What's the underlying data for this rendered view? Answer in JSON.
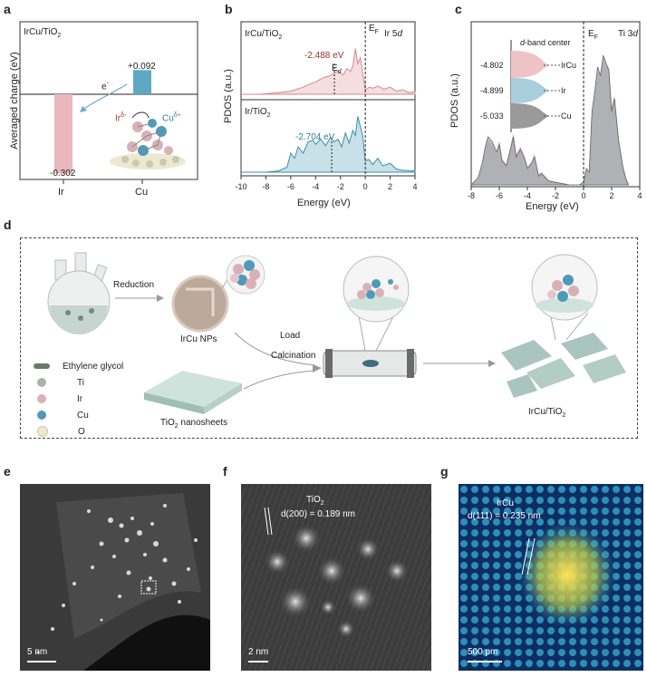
{
  "panels": {
    "a": {
      "letter": "a",
      "system_label": "IrCu/TiO",
      "system_sub": "2",
      "ylabel": "Averaged charge (eV)",
      "electron_label": "e",
      "electron_sup": "-",
      "ir_label": "Ir",
      "ir_sup": "δ-",
      "cu_label": "Cu",
      "cu_sup": "δ+",
      "colors": {
        "ir": "#e8b7bc",
        "cu": "#5fa8c4",
        "arrow": "#6aaac6"
      }
    },
    "b": {
      "letter": "b",
      "top_label": "IrCu/TiO",
      "top_sub": "2",
      "orbital": "Ir 5",
      "orbital_italic": "d",
      "ef_label": "E",
      "ef_sub": "F",
      "ed_label": "E",
      "ed_sub": "d",
      "top_value": "-2.488 eV",
      "bottom_label": "Ir/TiO",
      "bottom_sub": "2",
      "bottom_value": "-2.704 eV",
      "ylabel": "PDOS (a.u.)",
      "colors": {
        "top": "#d9888f",
        "bottom": "#3a8fa8",
        "top_value": "#9c2f2f",
        "bottom_value": "#2f7f99"
      }
    },
    "c": {
      "letter": "c",
      "orbital": "Ti 3",
      "orbital_italic": "d",
      "ef_label": "E",
      "ef_sub": "F",
      "dband_italic": "d",
      "dband_rest": "-band center",
      "ylabel": "PDOS (a.u.)",
      "xlabel": "Energy (eV)",
      "centers": [
        {
          "value": "-4.802",
          "name": "IrCu",
          "color": "#eec3c6"
        },
        {
          "value": "-4.899",
          "name": "Ir",
          "color": "#a9cedc"
        },
        {
          "value": "-5.033",
          "name": "Cu",
          "color": "#9a9a9a"
        }
      ]
    },
    "d": {
      "letter": "d",
      "reduction": "Reduction",
      "nps_label": "IrCu NPs",
      "load": "Load",
      "calcination": "Calcination",
      "nanosheets_label": "TiO",
      "nanosheets_sub": "2",
      "nanosheets_rest": " nanosheets",
      "product_label": "IrCu/TiO",
      "product_sub": "2",
      "legend": [
        {
          "label": "Ethylene glycol",
          "color": "#6b7a6b"
        },
        {
          "label": "Ti",
          "color": "#a7b3ad"
        },
        {
          "label": "Ir",
          "color": "#d9b1b4"
        },
        {
          "label": "Cu",
          "color": "#4f9ab8"
        },
        {
          "label": "O",
          "color": "#ede8cf"
        }
      ]
    },
    "e": {
      "letter": "e",
      "scalebar": "5 nm"
    },
    "f": {
      "letter": "f",
      "phase": "TiO",
      "phase_sub": "2",
      "spacing": "d(200) = 0.189 nm",
      "scalebar": "2 nm"
    },
    "g": {
      "letter": "g",
      "phase": "IrCu",
      "spacing": "d(111) = 0.235 nm",
      "scalebar": "500 pm"
    }
  },
  "chart_data": [
    {
      "type": "bar",
      "categories": [
        "Ir",
        "Cu"
      ],
      "values": [
        -0.302,
        0.092
      ],
      "value_labels": [
        "-0.302",
        "+0.092"
      ],
      "ylabel": "Averaged charge (eV)"
    },
    {
      "type": "area",
      "xlabel": "Energy (eV)",
      "ylabel": "PDOS (a.u.)",
      "xlim": [
        -10,
        4
      ],
      "xticks": [
        "-10",
        "-8",
        "-6",
        "-4",
        "-2",
        "0",
        "2",
        "4"
      ],
      "series": [
        {
          "name": "IrCu/TiO2",
          "d_band_center": -2.488,
          "x": [
            -10,
            -8.5,
            -7,
            -6,
            -5.5,
            -5,
            -4.5,
            -4,
            -3.6,
            -3.2,
            -2.8,
            -2.5,
            -2.2,
            -1.8,
            -1.5,
            -1.2,
            -1,
            -0.8,
            -0.6,
            -0.4,
            -0.2,
            0,
            0.3,
            0.6,
            1,
            1.5,
            2,
            2.5,
            3,
            3.5,
            4
          ],
          "y": [
            0,
            0,
            0.03,
            0.06,
            0.1,
            0.14,
            0.2,
            0.24,
            0.3,
            0.34,
            0.37,
            0.42,
            0.46,
            0.38,
            0.5,
            0.45,
            0.55,
            0.9,
            0.6,
            0.72,
            0.4,
            0.08,
            0.14,
            0.12,
            0.16,
            0.1,
            0.14,
            0.06,
            0.09,
            0.03,
            0.05
          ]
        },
        {
          "name": "Ir/TiO2",
          "d_band_center": -2.704,
          "x": [
            -10,
            -8,
            -7,
            -6.3,
            -6,
            -5.7,
            -5.4,
            -5,
            -4.6,
            -4.2,
            -4,
            -3.6,
            -3.2,
            -2.8,
            -2.5,
            -2.2,
            -1.9,
            -1.6,
            -1.3,
            -1,
            -0.8,
            -0.6,
            -0.4,
            -0.2,
            0,
            0.3,
            0.6,
            1,
            1.4,
            2,
            2.5,
            3,
            4
          ],
          "y": [
            0,
            0,
            0.02,
            0.08,
            0.3,
            0.22,
            0.4,
            0.3,
            0.48,
            0.5,
            0.44,
            0.52,
            0.42,
            0.55,
            0.48,
            0.52,
            0.4,
            0.62,
            0.46,
            0.66,
            0.58,
            0.88,
            0.72,
            0.56,
            0.18,
            0.2,
            0.12,
            0.22,
            0.1,
            0.14,
            0.05,
            0.03,
            0.02
          ]
        }
      ]
    },
    {
      "type": "area",
      "xlabel": "Energy (eV)",
      "ylabel": "PDOS (a.u.)",
      "xlim": [
        -8,
        4
      ],
      "xticks": [
        "-8",
        "-6",
        "-4",
        "-2",
        "0",
        "2",
        "4"
      ],
      "series": [
        {
          "name": "IrCu",
          "d_band_center": -4.802,
          "x": [
            -8,
            -7.5,
            -7.2,
            -7,
            -6.8,
            -6.5,
            -6.2,
            -6,
            -5.8,
            -5.5,
            -5.2,
            -5,
            -4.8,
            -4.5,
            -4.2,
            -4,
            -3.7,
            -3.5,
            -3.2,
            -3,
            -2.5,
            -2,
            -1,
            -0.3,
            0,
            0.2,
            0.4,
            0.6,
            0.8,
            1,
            1.2,
            1.4,
            1.6,
            1.8,
            2,
            2.2,
            2.5,
            2.8,
            3,
            3.2
          ],
          "y": [
            0,
            0.05,
            0.16,
            0.28,
            0.36,
            0.32,
            0.25,
            0.34,
            0.2,
            0.16,
            0.3,
            0.4,
            0.24,
            0.3,
            0.22,
            0.14,
            0.18,
            0.24,
            0.08,
            0.1,
            0.04,
            0.02,
            0,
            0,
            0.02,
            0.12,
            0.1,
            0.55,
            0.7,
            0.9,
            0.85,
            1,
            0.95,
            0.92,
            0.6,
            0.7,
            0.35,
            0.15,
            0.06,
            0
          ]
        },
        {
          "name": "Ir",
          "d_band_center": -4.899,
          "x": [
            -8,
            -7.5,
            -7.2,
            -7,
            -6.8,
            -6.5,
            -6.2,
            -6,
            -5.8,
            -5.5,
            -5.2,
            -5,
            -4.8,
            -4.5,
            -4.2,
            -4,
            -3.7,
            -3.5,
            -3.2,
            -3,
            -2.5,
            -2,
            -1,
            -0.3,
            0,
            0.2,
            0.4,
            0.6,
            0.8,
            1,
            1.2,
            1.4,
            1.6,
            1.8,
            2,
            2.2,
            2.5,
            2.8,
            3,
            3.2
          ],
          "y": [
            0,
            0.04,
            0.14,
            0.24,
            0.33,
            0.3,
            0.22,
            0.3,
            0.18,
            0.14,
            0.27,
            0.36,
            0.21,
            0.26,
            0.2,
            0.12,
            0.16,
            0.21,
            0.07,
            0.08,
            0.03,
            0.02,
            0,
            0,
            0.02,
            0.11,
            0.09,
            0.5,
            0.66,
            0.86,
            0.8,
            0.97,
            0.9,
            0.88,
            0.56,
            0.66,
            0.32,
            0.13,
            0.05,
            0
          ]
        },
        {
          "name": "Cu",
          "d_band_center": -5.033,
          "x": [
            -8,
            -7.5,
            -7.2,
            -7,
            -6.8,
            -6.5,
            -6.2,
            -6,
            -5.8,
            -5.5,
            -5.2,
            -5,
            -4.8,
            -4.5,
            -4.2,
            -4,
            -3.7,
            -3.5,
            -3.2,
            -3,
            -2.5,
            -2,
            -1,
            -0.3,
            0,
            0.2,
            0.4,
            0.6,
            0.8,
            1,
            1.2,
            1.4,
            1.6,
            1.8,
            2,
            2.2,
            2.5,
            2.8,
            3,
            3.2
          ],
          "y": [
            0,
            0.06,
            0.18,
            0.3,
            0.38,
            0.34,
            0.26,
            0.32,
            0.19,
            0.15,
            0.28,
            0.38,
            0.22,
            0.28,
            0.21,
            0.13,
            0.17,
            0.22,
            0.07,
            0.09,
            0.03,
            0.02,
            0,
            0,
            0.02,
            0.13,
            0.1,
            0.58,
            0.74,
            0.93,
            0.86,
            1.02,
            0.96,
            0.9,
            0.58,
            0.68,
            0.34,
            0.14,
            0.05,
            0
          ]
        }
      ]
    }
  ]
}
